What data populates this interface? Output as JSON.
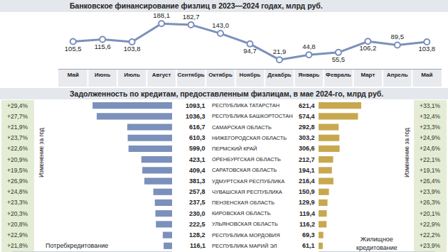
{
  "chart_data": [
    {
      "type": "line",
      "title": "Банковское финансирование физлиц в 2023—2024 годах, млрд руб.",
      "categories": [
        "Май",
        "Июнь",
        "Июль",
        "Август",
        "Сентябрь",
        "Октябрь",
        "Ноябрь",
        "Декабрь",
        "Январь",
        "Февраль",
        "Март",
        "Апрель",
        "Май"
      ],
      "values": [
        105.5,
        115.6,
        103.8,
        188.1,
        182.7,
        143.0,
        94.7,
        21.9,
        44.8,
        55.5,
        106.2,
        89.5,
        103.8
      ],
      "value_labels": [
        "105,5",
        "115,6",
        "103,8",
        "188,1",
        "182,7",
        "143,0",
        "94,7",
        "21,9",
        "44,8",
        "55,5",
        "106,2",
        "89,5",
        "103,8"
      ],
      "color": "#7b90bb",
      "marker": "circle",
      "data_labels": true,
      "tick_labels": "x",
      "grid": false,
      "ylim": [
        -20,
        215
      ]
    },
    {
      "type": "bar",
      "orientation": "horizontal",
      "title": "Задолженность по кредитам, предоставленным физлицам, в мае 2024-го, млрд руб.",
      "categories": [
        "РЕСПУБЛИКА ТАТАРСТАН",
        "РЕСПУБЛИКА БАШКОРТОСТАН",
        "САМАРСКАЯ ОБЛАСТЬ",
        "НИЖЕГОРОДСКАЯ ОБЛАСТЬ",
        "ПЕРМСКИЙ КРАЙ",
        "ОРЕНБУРГСКАЯ ОБЛАСТЬ",
        "САРАТОВСКАЯ ОБЛАСТЬ",
        "УДМУРТСКАЯ РЕСПУБЛИКА",
        "ЧУВАШСКАЯ РЕСПУБЛИКА",
        "ПЕНЗЕНСКАЯ ОБЛАСТЬ",
        "КИРОВСКАЯ ОБЛАСТЬ",
        "УЛЬЯНОВСКАЯ ОБЛАСТЬ",
        "РЕСПУБЛИКА МОРДОВИЯ",
        "РЕСПУБЛИКА МАРИЙ ЭЛ"
      ],
      "data_labels": true,
      "tick_labels": false,
      "grid": false,
      "series": [
        {
          "name": "Потребкредитование",
          "color": "#7b90bb",
          "xlim": [
            0,
            2200
          ],
          "values": [
            1093.1,
            1036.3,
            616.7,
            610.3,
            599.0,
            423.1,
            409.4,
            381.3,
            257.8,
            237.5,
            230.0,
            222.5,
            128.2,
            116.1
          ],
          "value_labels": [
            "1093,1",
            "1036,3",
            "616,7",
            "610,3",
            "599,0",
            "423,1",
            "409,4",
            "381,3",
            "257,8",
            "237,5",
            "230,0",
            "222,5",
            "128,2",
            "116,1"
          ],
          "change_title": "Изменение за год",
          "change": [
            29.4,
            27.7,
            21.9,
            23.7,
            22.6,
            20.9,
            19.5,
            26.9,
            24.8,
            23.3,
            20.3,
            20.8,
            22.9,
            21.8
          ],
          "change_labels": [
            "+29,4%",
            "+27,7%",
            "+21,9%",
            "+23,7%",
            "+22,6%",
            "+20,9%",
            "+19,5%",
            "+26,9%",
            "+24,8%",
            "+23,3%",
            "+20,3%",
            "+20,8%",
            "+22,9%",
            "+21,8%"
          ]
        },
        {
          "name": "Жилищное кредитование",
          "color": "#c8a84f",
          "xlim": [
            0,
            1700
          ],
          "values": [
            621.4,
            574.4,
            292.8,
            303.2,
            306.6,
            212.7,
            194.1,
            216.4,
            150.9,
            129.9,
            119.4,
            116.2,
            69.3,
            61.1
          ],
          "value_labels": [
            "621,4",
            "574,4",
            "292,8",
            "303,2",
            "306,6",
            "212,7",
            "194,1",
            "216,4",
            "150,9",
            "129,9",
            "119,4",
            "116,2",
            "69,3",
            "61,1"
          ],
          "change_title": "Изменение за год",
          "change": [
            33.1,
            32.4,
            23.3,
            24.9,
            24.6,
            22.1,
            19.1,
            26.4,
            23.9,
            26.3,
            20.1,
            22.9,
            22.2,
            23.9
          ],
          "change_labels": [
            "+33,1%",
            "+32,4%",
            "+23,3%",
            "+24,9%",
            "+24,6%",
            "+22,1%",
            "+19,1%",
            "+26,4%",
            "+23,9%",
            "+26,3%",
            "+20,1%",
            "+22,9%",
            "+22,2%",
            "+23,9%"
          ]
        }
      ]
    }
  ]
}
